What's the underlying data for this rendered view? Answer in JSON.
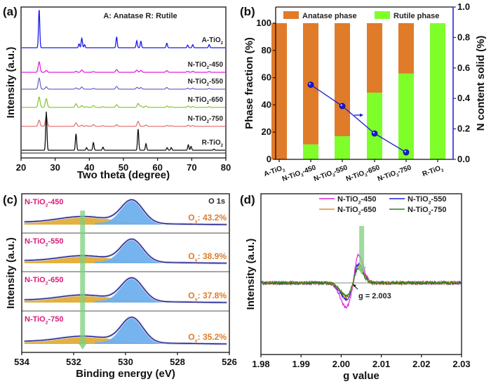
{
  "chart_data": [
    {
      "panel": "(a)",
      "type": "line",
      "title": "",
      "annotation": "A: Anatase    R: Rutile",
      "xlabel": "Two theta (degree)",
      "ylabel": "Intensity (a.u.)",
      "xlim": [
        20,
        80
      ],
      "xticks": [
        "20",
        "30",
        "40",
        "50",
        "60",
        "70",
        "80"
      ],
      "grid": false,
      "series": [
        {
          "name": "A-TiO2",
          "label": "A-TiO",
          "sub": "2",
          "suffix": "",
          "color": "#1a1aee",
          "peaks": [
            [
              25.3,
              1.0
            ],
            [
              37.0,
              0.1
            ],
            [
              37.8,
              0.25
            ],
            [
              38.6,
              0.08
            ],
            [
              48.0,
              0.28
            ],
            [
              53.9,
              0.18
            ],
            [
              55.1,
              0.17
            ],
            [
              62.7,
              0.12
            ],
            [
              68.8,
              0.07
            ],
            [
              70.3,
              0.08
            ],
            [
              75.1,
              0.08
            ]
          ]
        },
        {
          "name": "N-TiO2-450",
          "label": "N-TiO",
          "sub": "2",
          "suffix": "-450",
          "color": "#e020e0",
          "peaks": [
            [
              25.3,
              0.45
            ],
            [
              27.4,
              0.08
            ],
            [
              36.1,
              0.04
            ],
            [
              37.8,
              0.1
            ],
            [
              41.2,
              0.03
            ],
            [
              48.0,
              0.12
            ],
            [
              53.9,
              0.09
            ],
            [
              55.1,
              0.08
            ],
            [
              62.7,
              0.07
            ],
            [
              68.8,
              0.04
            ],
            [
              70.3,
              0.04
            ],
            [
              75.1,
              0.03
            ]
          ]
        },
        {
          "name": "N-TiO2-550",
          "label": "N-TiO",
          "sub": "2",
          "suffix": "-550",
          "color": "#6b6bc8",
          "peaks": [
            [
              25.3,
              0.48
            ],
            [
              27.4,
              0.1
            ],
            [
              36.1,
              0.05
            ],
            [
              37.8,
              0.09
            ],
            [
              41.2,
              0.03
            ],
            [
              48.0,
              0.12
            ],
            [
              54.0,
              0.08
            ],
            [
              55.1,
              0.07
            ],
            [
              62.7,
              0.07
            ],
            [
              68.8,
              0.04
            ],
            [
              70.3,
              0.04
            ],
            [
              75.1,
              0.03
            ]
          ]
        },
        {
          "name": "N-TiO2-650",
          "label": "N-TiO",
          "sub": "2",
          "suffix": "-650",
          "color": "#8dc63f",
          "peaks": [
            [
              25.3,
              0.45
            ],
            [
              27.4,
              0.38
            ],
            [
              36.1,
              0.16
            ],
            [
              37.8,
              0.08
            ],
            [
              39.2,
              0.03
            ],
            [
              41.2,
              0.08
            ],
            [
              44.0,
              0.03
            ],
            [
              48.0,
              0.12
            ],
            [
              54.3,
              0.17
            ],
            [
              55.1,
              0.06
            ],
            [
              56.6,
              0.06
            ],
            [
              62.8,
              0.06
            ],
            [
              64.0,
              0.03
            ],
            [
              69.0,
              0.06
            ],
            [
              70.3,
              0.04
            ],
            [
              75.1,
              0.03
            ]
          ]
        },
        {
          "name": "N-TiO2-750",
          "label": "N-TiO",
          "sub": "2",
          "suffix": "-750",
          "color": "#e57373",
          "peaks": [
            [
              25.3,
              0.27
            ],
            [
              27.4,
              0.42
            ],
            [
              36.1,
              0.15
            ],
            [
              37.8,
              0.05
            ],
            [
              39.2,
              0.03
            ],
            [
              41.2,
              0.08
            ],
            [
              44.0,
              0.03
            ],
            [
              48.0,
              0.07
            ],
            [
              54.3,
              0.22
            ],
            [
              56.6,
              0.06
            ],
            [
              62.8,
              0.04
            ],
            [
              64.0,
              0.03
            ],
            [
              69.0,
              0.05
            ],
            [
              70.3,
              0.03
            ]
          ]
        },
        {
          "name": "R-TiO2",
          "label": "R-TiO",
          "sub": "2",
          "suffix": "",
          "color": "#111111",
          "peaks": [
            [
              27.4,
              1.0
            ],
            [
              36.1,
              0.43
            ],
            [
              39.2,
              0.07
            ],
            [
              41.2,
              0.2
            ],
            [
              44.0,
              0.08
            ],
            [
              54.3,
              0.55
            ],
            [
              56.6,
              0.17
            ],
            [
              62.8,
              0.07
            ],
            [
              64.0,
              0.07
            ],
            [
              69.0,
              0.14
            ],
            [
              69.8,
              0.1
            ],
            [
              76.5,
              0.03
            ]
          ]
        }
      ]
    },
    {
      "panel": "(b)",
      "type": "bar",
      "stacked": true,
      "xlabel": "",
      "ylabel": "Phase fraction (%)",
      "y2label": "N content solid (%)",
      "ylim": [
        0,
        100
      ],
      "y2lim": [
        0,
        1.0
      ],
      "yticks": [
        "0",
        "20",
        "40",
        "60",
        "80",
        "100"
      ],
      "y2ticks": [
        "0.0",
        "0.2",
        "0.4",
        "0.6",
        "0.8",
        "1.0"
      ],
      "legend_position": "top",
      "categories": [
        {
          "label": "A-TiO",
          "sub": "2",
          "suffix": ""
        },
        {
          "label": "N-TiO",
          "sub": "2",
          "suffix": "-450"
        },
        {
          "label": "N-TiO",
          "sub": "2",
          "suffix": "-550"
        },
        {
          "label": "N-TiO",
          "sub": "2",
          "suffix": "-650"
        },
        {
          "label": "N-TiO",
          "sub": "2",
          "suffix": "-750"
        },
        {
          "label": "R-TiO",
          "sub": "2",
          "suffix": ""
        }
      ],
      "series": [
        {
          "name": "Anatase phase",
          "color": "#e07b2a",
          "values": [
            100,
            89,
            83,
            51,
            37,
            0
          ]
        },
        {
          "name": "Rutile phase",
          "color": "#7fff2a",
          "values": [
            0,
            11,
            17,
            49,
            63,
            100
          ]
        }
      ],
      "line_series": {
        "name": "N content solid",
        "axis": "right",
        "color": "#1a1ad8",
        "indices": [
          1,
          2,
          3,
          4
        ],
        "values": [
          0.49,
          0.35,
          0.17,
          0.046
        ]
      }
    },
    {
      "panel": "(c)",
      "type": "area",
      "title": "O 1s",
      "xlabel": "Binding energy (eV)",
      "ylabel": "Intensity (a.u.)",
      "xlim": [
        534,
        526
      ],
      "xticks": [
        "534",
        "532",
        "530",
        "528",
        "526"
      ],
      "peak_centers_eV": {
        "lattice_O": 529.75,
        "vacancy_O": 531.6
      },
      "series": [
        {
          "name": "N-TiO2-450",
          "label": "N-TiO",
          "sub": "2",
          "suffix": "-450",
          "ov_label": "O",
          "ov_sub": "v",
          "ov_value": ": 43.2%",
          "ov_percent": 43.2
        },
        {
          "name": "N-TiO2-550",
          "label": "N-TiO",
          "sub": "2",
          "suffix": "-550",
          "ov_label": "O",
          "ov_sub": "v",
          "ov_value": ": 38.9%",
          "ov_percent": 38.9
        },
        {
          "name": "N-TiO2-650",
          "label": "N-TiO",
          "sub": "2",
          "suffix": "-650",
          "ov_label": "O",
          "ov_sub": "v",
          "ov_value": ": 37.8%",
          "ov_percent": 37.8
        },
        {
          "name": "N-TiO2-750",
          "label": "N-TiO",
          "sub": "2",
          "suffix": "-750",
          "ov_label": "O",
          "ov_sub": "v",
          "ov_value": ": 35.2%",
          "ov_percent": 35.2
        }
      ],
      "colors": {
        "label": "#d81b78",
        "ov": "#e07b2a",
        "lattice_fill": "#6fb0ee",
        "vacancy_fill": "#e0a92a",
        "envelope": "#1a1a8c",
        "arrow": "#7fcf7f"
      }
    },
    {
      "panel": "(d)",
      "type": "line",
      "xlabel": "g value",
      "ylabel": "Intensity (a.u.)",
      "xlim": [
        1.98,
        2.03
      ],
      "xticks": [
        "1.98",
        "1.99",
        "2.00",
        "2.01",
        "2.02",
        "2.03"
      ],
      "annotation": "g = 2.003",
      "g_center": 2.003,
      "legend_position": "top-right",
      "series": [
        {
          "name": "N-TiO2-450",
          "label": "N-TiO",
          "sub": "2",
          "suffix": "-450",
          "color": "#e020e0",
          "amplitude": 1.0
        },
        {
          "name": "N-TiO2-550",
          "label": "N-TiO",
          "sub": "2",
          "suffix": "-550",
          "color": "#2020e0",
          "amplitude": 0.68
        },
        {
          "name": "N-TiO2-650",
          "label": "N-TiO",
          "sub": "2",
          "suffix": "-650",
          "color": "#e88a2a",
          "amplitude": 0.6
        },
        {
          "name": "N-TiO2-750",
          "label": "N-TiO",
          "sub": "2",
          "suffix": "-750",
          "color": "#2e7d1e",
          "amplitude": 0.53
        }
      ]
    }
  ]
}
